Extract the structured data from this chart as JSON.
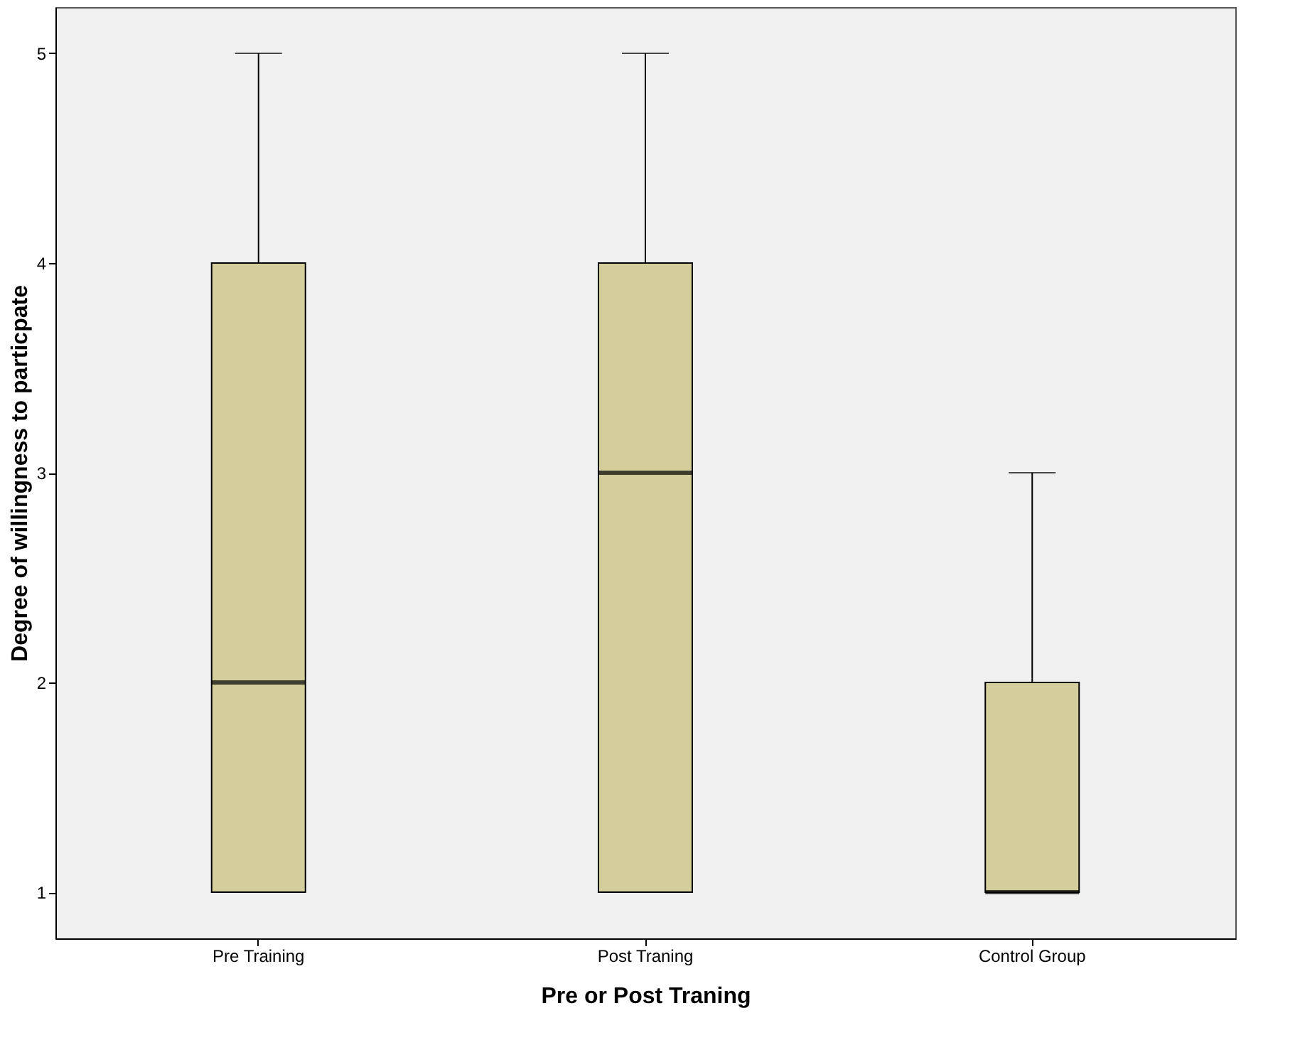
{
  "chart_data": {
    "type": "box",
    "xlabel": "Pre or Post Traning",
    "ylabel": "Degree of willingness to particpate",
    "categories": [
      "Pre Training",
      "Post Traning",
      "Control Group"
    ],
    "boxes": [
      {
        "low": 1,
        "q1": 1,
        "median": 2,
        "q3": 4,
        "high": 5
      },
      {
        "low": 1,
        "q1": 1,
        "median": 3,
        "q3": 4,
        "high": 5
      },
      {
        "low": 1,
        "q1": 1,
        "median": 1,
        "q3": 2,
        "high": 3
      }
    ],
    "color": "#d3ce9c",
    "ylim": [
      0.78,
      5.22
    ],
    "yticks": [
      1,
      2,
      3,
      4,
      5
    ]
  }
}
